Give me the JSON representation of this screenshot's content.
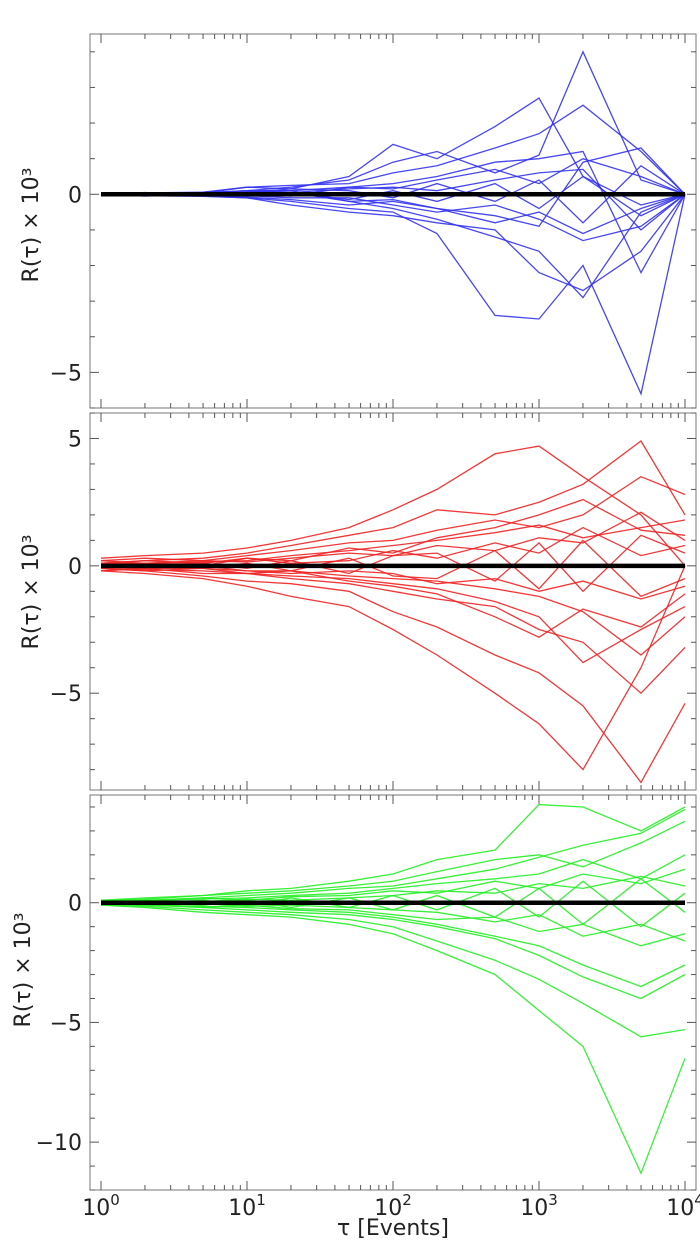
{
  "xlabel": "τ [Events]",
  "chart_data": [
    {
      "type": "line",
      "panel": "top",
      "color": "#3333ee",
      "ylabel": "R(τ) × 10³",
      "xscale": "log",
      "xlim": [
        1,
        10000
      ],
      "ylim": [
        -6,
        4.5
      ],
      "yticks": [
        {
          "value": -5,
          "label": "−5"
        },
        {
          "value": 0,
          "label": "0"
        }
      ],
      "x": [
        1,
        2,
        5,
        10,
        20,
        50,
        100,
        200,
        500,
        1000,
        2000,
        5000,
        10000
      ],
      "reference_line": {
        "y": 0,
        "color": "#000000"
      },
      "series": [
        {
          "values": [
            0,
            0.02,
            0.05,
            0.1,
            0.2,
            0.4,
            0.9,
            1.2,
            0.6,
            1.1,
            4.0,
            0.4,
            0
          ]
        },
        {
          "values": [
            0,
            -0.03,
            0.04,
            0.2,
            0.15,
            0.5,
            1.4,
            1.0,
            1.9,
            2.7,
            0.5,
            -0.3,
            0
          ]
        },
        {
          "values": [
            0,
            0.05,
            -0.05,
            -0.1,
            -0.2,
            -0.4,
            -0.5,
            -1.1,
            -3.4,
            -3.5,
            -2.0,
            -5.6,
            0
          ]
        },
        {
          "values": [
            0,
            -0.05,
            0.03,
            0.1,
            0.1,
            -0.2,
            -0.4,
            -0.7,
            -1.2,
            -1.6,
            -2.9,
            -0.5,
            0
          ]
        },
        {
          "values": [
            0,
            0.04,
            0.06,
            0.2,
            0.25,
            0.3,
            0.6,
            0.8,
            1.3,
            1.7,
            2.5,
            1.2,
            0
          ]
        },
        {
          "values": [
            0,
            -0.04,
            -0.06,
            -0.1,
            -0.3,
            -0.5,
            -0.6,
            -0.8,
            -1.0,
            -2.2,
            -2.7,
            -1.6,
            0
          ]
        },
        {
          "values": [
            0,
            0.02,
            0.03,
            0.05,
            0.1,
            0.2,
            0.3,
            0.5,
            0.9,
            1.0,
            1.2,
            -2.2,
            0
          ]
        },
        {
          "values": [
            0,
            -0.02,
            -0.04,
            -0.08,
            -0.15,
            -0.3,
            -0.2,
            -0.4,
            -0.6,
            -0.9,
            0.9,
            1.3,
            0
          ]
        },
        {
          "values": [
            0,
            0.03,
            0.05,
            0.08,
            0.05,
            0.15,
            0.2,
            0.1,
            0.4,
            0.6,
            0.7,
            -1.0,
            0
          ]
        },
        {
          "values": [
            0,
            -0.03,
            -0.02,
            -0.04,
            -0.1,
            -0.1,
            -0.3,
            -0.5,
            -0.3,
            -0.7,
            -1.3,
            -0.9,
            0
          ]
        },
        {
          "values": [
            0,
            0.01,
            -0.02,
            0.05,
            0.15,
            0.1,
            -0.1,
            0.3,
            -0.2,
            0.4,
            -0.8,
            0.8,
            0
          ]
        },
        {
          "values": [
            0,
            -0.01,
            0.02,
            -0.05,
            0.05,
            -0.15,
            0.1,
            -0.2,
            0.3,
            -0.4,
            0.5,
            -0.6,
            0
          ]
        },
        {
          "values": [
            0,
            0.02,
            0.01,
            0.03,
            -0.05,
            0.2,
            0.15,
            0.4,
            0.7,
            0.3,
            1.0,
            0.5,
            0
          ]
        },
        {
          "values": [
            0,
            -0.02,
            -0.01,
            -0.03,
            0.05,
            -0.2,
            -0.15,
            -0.4,
            -0.8,
            -0.5,
            -1.1,
            -0.4,
            0
          ]
        }
      ]
    },
    {
      "type": "line",
      "panel": "middle",
      "color": "#ee2222",
      "ylabel": "R(τ) × 10³",
      "xscale": "log",
      "xlim": [
        1,
        10000
      ],
      "ylim": [
        -8.8,
        6
      ],
      "yticks": [
        {
          "value": -5,
          "label": "−5"
        },
        {
          "value": 0,
          "label": "0"
        },
        {
          "value": 5,
          "label": "5"
        }
      ],
      "x": [
        1,
        2,
        5,
        10,
        20,
        50,
        100,
        200,
        500,
        1000,
        2000,
        5000,
        10000
      ],
      "reference_line": {
        "y": 0,
        "color": "#000000"
      },
      "series": [
        {
          "values": [
            0.3,
            0.4,
            0.5,
            0.7,
            1.0,
            1.5,
            2.2,
            3.0,
            4.4,
            4.7,
            3.5,
            2.0,
            0
          ]
        },
        {
          "values": [
            -0.2,
            -0.3,
            -0.5,
            -0.8,
            -1.2,
            -1.6,
            -2.5,
            -3.5,
            -5.0,
            -6.2,
            -8.0,
            -4.0,
            0
          ]
        },
        {
          "values": [
            0.1,
            0.2,
            0.3,
            0.5,
            0.8,
            1.2,
            1.5,
            2.2,
            2.0,
            2.5,
            3.2,
            4.9,
            2.0
          ]
        },
        {
          "values": [
            -0.1,
            -0.2,
            -0.4,
            -0.6,
            -0.7,
            -1.0,
            -1.8,
            -2.4,
            -3.5,
            -4.2,
            -5.5,
            -8.5,
            -5.4
          ]
        },
        {
          "values": [
            0.2,
            0.3,
            0.2,
            0.4,
            0.6,
            0.9,
            1.0,
            1.4,
            1.8,
            1.5,
            2.0,
            3.5,
            2.8
          ]
        },
        {
          "values": [
            -0.2,
            -0.1,
            -0.3,
            -0.3,
            -0.5,
            -0.7,
            -1.0,
            -1.3,
            -1.6,
            -2.5,
            -3.0,
            -5.0,
            -3.2
          ]
        },
        {
          "values": [
            0.1,
            0.1,
            0.15,
            0.2,
            0.4,
            0.6,
            0.8,
            1.0,
            1.3,
            1.6,
            1.1,
            1.5,
            1.8
          ]
        },
        {
          "values": [
            -0.1,
            -0.15,
            -0.2,
            -0.3,
            -0.4,
            -0.5,
            -0.7,
            -0.9,
            -1.4,
            -2.0,
            -3.8,
            -2.5,
            -1.6
          ]
        },
        {
          "values": [
            0.05,
            0.1,
            0.2,
            0.15,
            0.3,
            0.5,
            0.4,
            0.8,
            0.6,
            1.1,
            0.9,
            2.1,
            1.0
          ]
        },
        {
          "values": [
            -0.05,
            -0.1,
            -0.1,
            -0.2,
            -0.2,
            -0.4,
            -0.5,
            -0.6,
            -0.9,
            -1.2,
            -1.8,
            -3.5,
            -2.0
          ]
        },
        {
          "values": [
            0.2,
            0.1,
            0.0,
            0.3,
            0.1,
            0.2,
            0.6,
            0.3,
            0.9,
            0.5,
            1.5,
            0.4,
            0.8
          ]
        },
        {
          "values": [
            -0.2,
            -0.1,
            0.0,
            -0.2,
            -0.3,
            -0.2,
            -0.3,
            -0.7,
            -0.5,
            -1.0,
            -0.6,
            -1.3,
            -0.8
          ]
        },
        {
          "values": [
            0.0,
            0.05,
            0.1,
            -0.1,
            0.2,
            -0.3,
            0.4,
            0.5,
            -0.6,
            0.9,
            -1.0,
            1.2,
            0.5
          ]
        },
        {
          "values": [
            0.0,
            -0.05,
            -0.1,
            0.1,
            -0.2,
            0.3,
            -0.4,
            -0.5,
            0.6,
            -0.9,
            1.0,
            -1.2,
            -0.5
          ]
        },
        {
          "values": [
            0.1,
            0.2,
            0.1,
            0.3,
            0.2,
            0.7,
            0.5,
            1.1,
            1.5,
            2.0,
            2.6,
            1.4,
            1.2
          ]
        },
        {
          "values": [
            -0.1,
            -0.2,
            -0.1,
            -0.3,
            -0.2,
            -0.6,
            -0.8,
            -1.1,
            -2.0,
            -2.8,
            -1.7,
            -2.4,
            -1.1
          ]
        }
      ]
    },
    {
      "type": "line",
      "panel": "bottom",
      "color": "#22ee22",
      "ylabel": "R(τ) × 10³",
      "xscale": "log",
      "xlim": [
        1,
        10000
      ],
      "ylim": [
        -12,
        4.5
      ],
      "yticks": [
        {
          "value": -10,
          "label": "−10"
        },
        {
          "value": -5,
          "label": "−5"
        },
        {
          "value": 0,
          "label": "0"
        }
      ],
      "x": [
        1,
        2,
        5,
        10,
        20,
        50,
        100,
        200,
        500,
        1000,
        2000,
        5000,
        10000
      ],
      "reference_line": {
        "y": 0,
        "color": "#000000"
      },
      "series": [
        {
          "values": [
            0.1,
            0.2,
            0.3,
            0.5,
            0.6,
            0.9,
            1.2,
            1.8,
            2.2,
            4.1,
            4.0,
            3.0,
            4.0
          ]
        },
        {
          "values": [
            -0.1,
            -0.2,
            -0.4,
            -0.5,
            -0.6,
            -0.9,
            -1.3,
            -2.0,
            -3.0,
            -4.5,
            -6.0,
            -11.3,
            -6.5
          ]
        },
        {
          "values": [
            0.1,
            0.15,
            0.3,
            0.4,
            0.5,
            0.7,
            0.9,
            1.3,
            1.8,
            2.0,
            1.5,
            2.5,
            3.4
          ]
        },
        {
          "values": [
            -0.1,
            -0.15,
            -0.3,
            -0.4,
            -0.5,
            -0.7,
            -1.0,
            -1.6,
            -2.4,
            -3.2,
            -4.2,
            -5.6,
            -5.3
          ]
        },
        {
          "values": [
            0.05,
            0.1,
            0.15,
            0.2,
            0.3,
            0.4,
            0.6,
            0.8,
            1.0,
            1.2,
            1.8,
            1.0,
            2.0
          ]
        },
        {
          "values": [
            -0.05,
            -0.1,
            -0.15,
            -0.2,
            -0.3,
            -0.4,
            -0.6,
            -0.9,
            -1.4,
            -1.8,
            -2.6,
            -3.5,
            -2.6
          ]
        },
        {
          "values": [
            0.1,
            0.05,
            0.2,
            0.1,
            0.25,
            0.3,
            0.5,
            0.4,
            0.9,
            0.6,
            1.2,
            0.8,
            1.4
          ]
        },
        {
          "values": [
            -0.1,
            -0.05,
            -0.2,
            -0.1,
            -0.25,
            -0.3,
            -0.5,
            -0.7,
            -0.6,
            -1.2,
            -0.9,
            -1.8,
            -1.3
          ]
        },
        {
          "values": [
            0.0,
            0.1,
            0.05,
            0.15,
            0.1,
            0.2,
            0.3,
            0.5,
            0.4,
            0.8,
            0.6,
            1.1,
            0.7
          ]
        },
        {
          "values": [
            0.0,
            -0.1,
            -0.05,
            -0.15,
            -0.1,
            -0.2,
            -0.3,
            -0.4,
            -0.8,
            -0.5,
            -1.4,
            -0.9,
            -1.6
          ]
        },
        {
          "values": [
            0.1,
            0.0,
            0.1,
            -0.1,
            0.2,
            -0.2,
            0.3,
            -0.3,
            0.6,
            -0.6,
            0.9,
            -1.0,
            0.4
          ]
        },
        {
          "values": [
            -0.1,
            0.0,
            -0.1,
            0.1,
            -0.2,
            0.2,
            -0.3,
            0.3,
            -0.6,
            0.6,
            -0.9,
            1.0,
            -0.4
          ]
        },
        {
          "values": [
            0.05,
            0.1,
            0.2,
            0.3,
            0.4,
            0.6,
            0.7,
            1.0,
            1.4,
            1.9,
            2.4,
            2.9,
            3.9
          ]
        },
        {
          "values": [
            -0.05,
            -0.1,
            -0.2,
            -0.3,
            -0.4,
            -0.5,
            -0.7,
            -1.0,
            -1.5,
            -2.2,
            -3.1,
            -4.0,
            -3.0
          ]
        }
      ]
    }
  ]
}
